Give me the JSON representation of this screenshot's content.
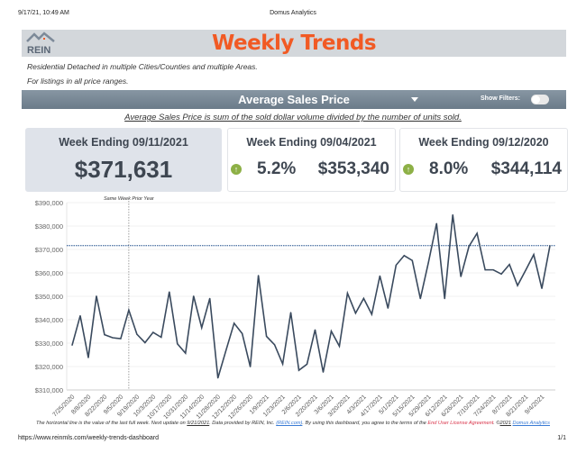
{
  "print_header": {
    "datetime": "9/17/21, 10:49 AM",
    "page_title": "Domus Analytics"
  },
  "banner": {
    "logo_text": "REIN",
    "title": "Weekly Trends"
  },
  "subtitles": [
    "Residential Detached in multiple Cities/Counties and multiple Areas.",
    "For listings in all price ranges."
  ],
  "metric_bar": {
    "selected_metric": "Average Sales Price",
    "show_filters_label": "Show Filters:",
    "show_filters_on": false
  },
  "caption": "Average Sales Price is sum of the sold dollar volume divided by the number of units sold.",
  "cards": [
    {
      "heading": "Week Ending 09/11/2021",
      "value": "$371,631"
    },
    {
      "heading": "Week Ending 09/04/2021",
      "change": "5.2%",
      "value": "$353,340",
      "direction": "up"
    },
    {
      "heading": "Week Ending 09/12/2020",
      "change": "8.0%",
      "value": "$344,114",
      "direction": "up"
    }
  ],
  "colors": {
    "accent": "#f15a24",
    "line": "#3a4a5e",
    "up": "#8db046",
    "reference_line": "#1f4e8c"
  },
  "chart_data": {
    "type": "line",
    "ylim": [
      310000,
      390000
    ],
    "yticks": [
      "$310,000",
      "$320,000",
      "$330,000",
      "$340,000",
      "$350,000",
      "$360,000",
      "$370,000",
      "$380,000",
      "$390,000"
    ],
    "xtick_labels": [
      "7/25/2020",
      "8/8/2020",
      "8/22/2020",
      "9/5/2020",
      "9/19/2020",
      "10/3/2020",
      "10/17/2020",
      "10/31/2020",
      "11/14/2020",
      "11/28/2020",
      "12/12/2020",
      "12/26/2020",
      "1/9/2021",
      "1/23/2021",
      "2/6/2021",
      "2/20/2021",
      "3/6/2021",
      "3/20/2021",
      "4/3/2021",
      "4/17/2021",
      "5/1/2021",
      "5/15/2021",
      "5/29/2021",
      "6/12/2021",
      "6/26/2021",
      "7/10/2021",
      "7/24/2021",
      "8/7/2021",
      "8/21/2021",
      "9/4/2021"
    ],
    "x_start": "7/25/2020",
    "x_end": "9/11/2021",
    "interval": "weekly",
    "values": [
      329100,
      341700,
      323800,
      350100,
      333600,
      332300,
      331900,
      344114,
      333800,
      330200,
      334600,
      332500,
      351900,
      329700,
      325700,
      350100,
      336600,
      349100,
      315100,
      326900,
      338500,
      334100,
      319900,
      358900,
      332900,
      329300,
      321100,
      343100,
      318400,
      321000,
      335700,
      317600,
      335100,
      328700,
      351300,
      342800,
      349100,
      342300,
      358700,
      344900,
      363300,
      367400,
      365300,
      349000,
      364500,
      381100,
      349000,
      384800,
      358400,
      371300,
      376900,
      361300,
      361300,
      359500,
      363600,
      354600,
      361100,
      367800,
      353340,
      371631
    ],
    "reference_line": {
      "value": 371631
    },
    "annotation": {
      "label": "Same Week Prior Year",
      "x": "9/12/2020"
    },
    "grid": true
  },
  "footer": {
    "note1": "The horizontal line is the value of the last full week. Next update on ",
    "next_update": "9/21/2021",
    "note2": ".     Data provided by REIN, Inc. ",
    "rein_link": "(REIN.com)",
    "note3": ". By using this dashboard, you agree to the terms of the ",
    "eula": "End User License Agreement",
    "note4": ".  ©",
    "year": "2021",
    "domus_link": "Domus Analytics"
  },
  "print_footer": {
    "url": "https://www.reinmls.com/weekly-trends-dashboard",
    "page": "1/1"
  }
}
